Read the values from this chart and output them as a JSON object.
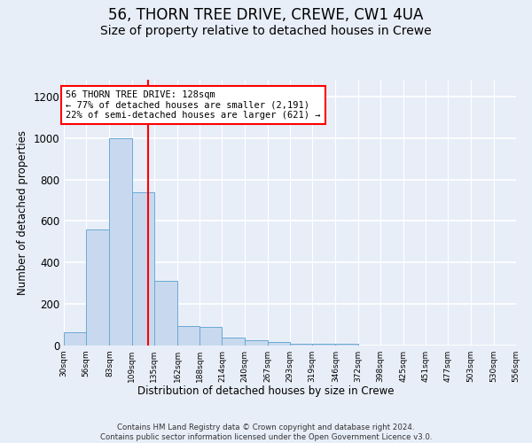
{
  "title1": "56, THORN TREE DRIVE, CREWE, CW1 4UA",
  "title2": "Size of property relative to detached houses in Crewe",
  "xlabel": "Distribution of detached houses by size in Crewe",
  "ylabel": "Number of detached properties",
  "bar_edges": [
    30,
    56,
    83,
    109,
    135,
    162,
    188,
    214,
    240,
    267,
    293,
    319,
    346,
    372,
    398,
    425,
    451,
    477,
    503,
    530,
    556
  ],
  "bar_heights": [
    65,
    560,
    1000,
    740,
    310,
    95,
    90,
    40,
    25,
    15,
    10,
    10,
    10,
    0,
    0,
    0,
    0,
    0,
    0,
    0
  ],
  "bar_color": "#c8d9ef",
  "bar_edge_color": "#6aaad4",
  "red_line_x": 128,
  "annotation_text": "56 THORN TREE DRIVE: 128sqm\n← 77% of detached houses are smaller (2,191)\n22% of semi-detached houses are larger (621) →",
  "annotation_box_color": "white",
  "annotation_box_edge_color": "red",
  "ylim": [
    0,
    1280
  ],
  "yticks": [
    0,
    200,
    400,
    600,
    800,
    1000,
    1200
  ],
  "footer_text": "Contains HM Land Registry data © Crown copyright and database right 2024.\nContains public sector information licensed under the Open Government Licence v3.0.",
  "bg_color": "#e8eef8",
  "grid_color": "white",
  "title1_fontsize": 12,
  "title2_fontsize": 10
}
